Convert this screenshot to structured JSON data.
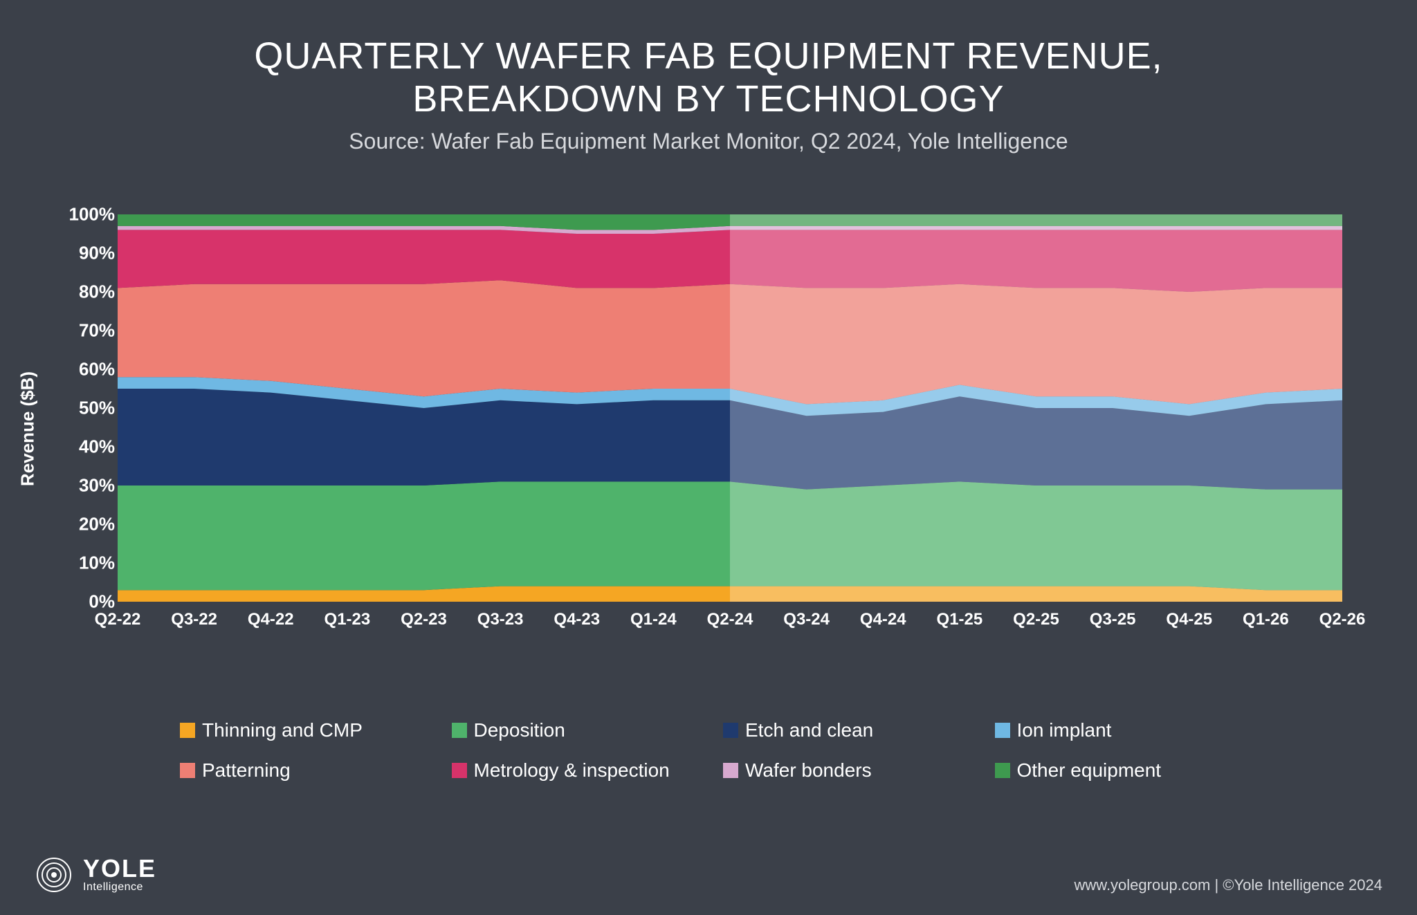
{
  "title_line1": "QUARTERLY WAFER FAB EQUIPMENT REVENUE,",
  "title_line2": "BREAKDOWN BY TECHNOLOGY",
  "subtitle": "Source: Wafer Fab Equipment Market Monitor, Q2 2024, Yole Intelligence",
  "chart": {
    "type": "area-stacked-100",
    "background_color": "#3b4049",
    "yaxis_label": "Revenue ($B)",
    "yaxis_label_fontsize": 26,
    "ylim": [
      0,
      100
    ],
    "ytick_step": 10,
    "ytick_suffix": "%",
    "tick_fontsize": 26,
    "categories": [
      "Q2-22",
      "Q3-22",
      "Q4-22",
      "Q1-23",
      "Q2-23",
      "Q3-23",
      "Q4-23",
      "Q1-24",
      "Q2-24",
      "Q3-24",
      "Q4-24",
      "Q1-25",
      "Q2-25",
      "Q3-25",
      "Q4-25",
      "Q1-26",
      "Q2-26"
    ],
    "forecast_start_index": 8,
    "forecast_overlay_color": "rgba(255,255,255,0.28)",
    "series": [
      {
        "name": "Thinning and CMP",
        "color": "#f5a623",
        "values": [
          3,
          3,
          3,
          3,
          3,
          4,
          4,
          4,
          4,
          4,
          4,
          4,
          4,
          4,
          4,
          3,
          3
        ]
      },
      {
        "name": "Deposition",
        "color": "#4fb36b",
        "values": [
          27,
          27,
          27,
          27,
          27,
          27,
          27,
          27,
          27,
          25,
          26,
          27,
          26,
          26,
          26,
          26,
          26
        ]
      },
      {
        "name": "Etch and clean",
        "color": "#1f3a6e",
        "values": [
          25,
          25,
          24,
          22,
          20,
          21,
          20,
          21,
          21,
          19,
          19,
          22,
          20,
          20,
          18,
          22,
          23
        ]
      },
      {
        "name": "Ion implant",
        "color": "#6fb8e3",
        "values": [
          3,
          3,
          3,
          3,
          3,
          3,
          3,
          3,
          3,
          3,
          3,
          3,
          3,
          3,
          3,
          3,
          3
        ]
      },
      {
        "name": "Patterning",
        "color": "#ee7f74",
        "values": [
          23,
          24,
          25,
          27,
          29,
          28,
          27,
          26,
          27,
          30,
          29,
          26,
          28,
          28,
          29,
          27,
          26
        ]
      },
      {
        "name": "Metrology & inspection",
        "color": "#d7336a",
        "values": [
          15,
          14,
          14,
          14,
          14,
          13,
          14,
          14,
          14,
          15,
          15,
          14,
          15,
          15,
          16,
          15,
          15
        ]
      },
      {
        "name": "Wafer bonders",
        "color": "#d7a9cf",
        "values": [
          1,
          1,
          1,
          1,
          1,
          1,
          1,
          1,
          1,
          1,
          1,
          1,
          1,
          1,
          1,
          1,
          1
        ]
      },
      {
        "name": "Other equipment",
        "color": "#3e9a4f",
        "values": [
          3,
          3,
          3,
          3,
          3,
          3,
          4,
          4,
          3,
          3,
          3,
          3,
          3,
          3,
          3,
          3,
          3
        ]
      }
    ]
  },
  "legend_fontsize": 28,
  "logo": {
    "brand": "YOLE",
    "sub": "Intelligence"
  },
  "copyright": "www.yolegroup.com | ©Yole Intelligence 2024"
}
